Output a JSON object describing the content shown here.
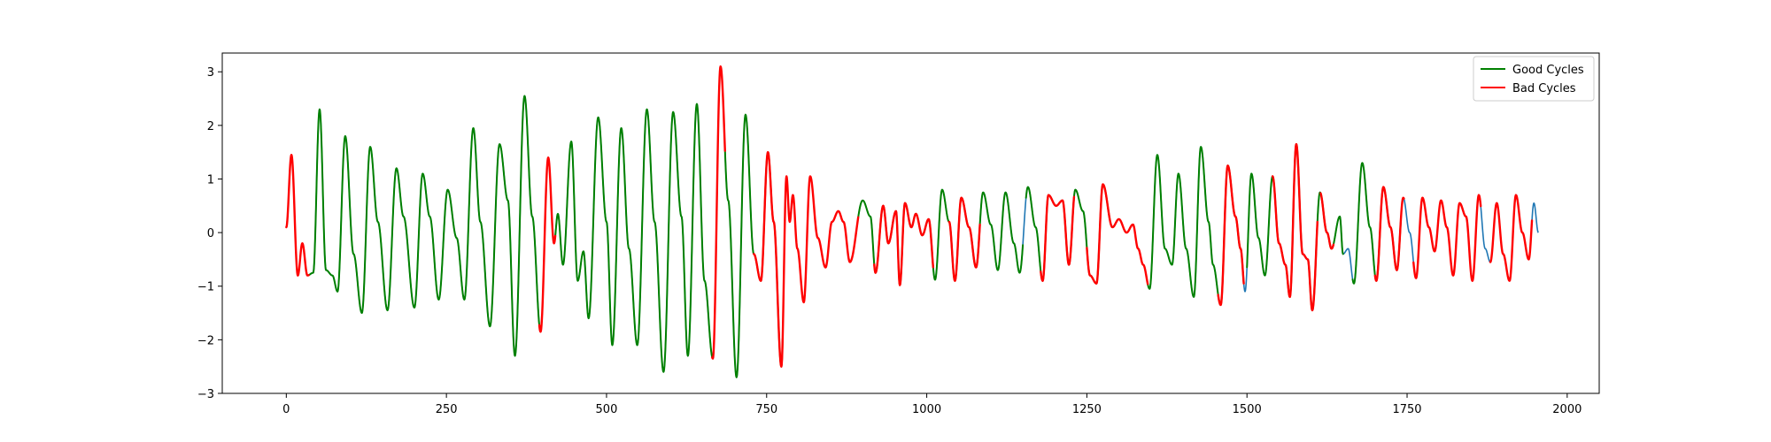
{
  "chart_data": {
    "type": "line",
    "title": "",
    "xlabel": "",
    "ylabel": "",
    "xlim": [
      -100,
      2050
    ],
    "ylim": [
      -3.0,
      3.35
    ],
    "xticks": [
      0,
      250,
      500,
      750,
      1000,
      1250,
      1500,
      1750,
      2000
    ],
    "xtick_labels": [
      "0",
      "250",
      "500",
      "750",
      "1000",
      "1250",
      "1500",
      "1750",
      "2000"
    ],
    "yticks": [
      -3,
      -2,
      -1,
      0,
      1,
      2,
      3
    ],
    "ytick_labels": [
      "−3",
      "−2",
      "−1",
      "0",
      "1",
      "2",
      "3"
    ],
    "grid": false,
    "legend_position": "top-right",
    "colors": {
      "base": "#1f77b4",
      "good": "#008000",
      "bad": "#ff0000"
    },
    "signal_x_range": [
      0,
      1955
    ],
    "signal_extremes": [
      {
        "x": 0,
        "y": 0.1
      },
      {
        "x": 8,
        "y": 1.45
      },
      {
        "x": 18,
        "y": -0.8
      },
      {
        "x": 25,
        "y": -0.2
      },
      {
        "x": 33,
        "y": -0.8
      },
      {
        "x": 42,
        "y": -0.75
      },
      {
        "x": 52,
        "y": 2.3
      },
      {
        "x": 62,
        "y": -0.7
      },
      {
        "x": 72,
        "y": -0.8
      },
      {
        "x": 80,
        "y": -1.1
      },
      {
        "x": 92,
        "y": 1.8
      },
      {
        "x": 105,
        "y": -0.4
      },
      {
        "x": 118,
        "y": -1.5
      },
      {
        "x": 131,
        "y": 1.6
      },
      {
        "x": 143,
        "y": 0.2
      },
      {
        "x": 158,
        "y": -1.45
      },
      {
        "x": 172,
        "y": 1.2
      },
      {
        "x": 183,
        "y": 0.3
      },
      {
        "x": 200,
        "y": -1.4
      },
      {
        "x": 213,
        "y": 1.1
      },
      {
        "x": 224,
        "y": 0.3
      },
      {
        "x": 238,
        "y": -1.25
      },
      {
        "x": 252,
        "y": 0.8
      },
      {
        "x": 266,
        "y": -0.1
      },
      {
        "x": 278,
        "y": -1.25
      },
      {
        "x": 292,
        "y": 1.95
      },
      {
        "x": 303,
        "y": 0.2
      },
      {
        "x": 318,
        "y": -1.75
      },
      {
        "x": 333,
        "y": 1.65
      },
      {
        "x": 346,
        "y": 0.6
      },
      {
        "x": 357,
        "y": -2.3
      },
      {
        "x": 372,
        "y": 2.55
      },
      {
        "x": 384,
        "y": 0.3
      },
      {
        "x": 397,
        "y": -1.85
      },
      {
        "x": 409,
        "y": 1.4
      },
      {
        "x": 418,
        "y": -0.2
      },
      {
        "x": 424,
        "y": 0.35
      },
      {
        "x": 432,
        "y": -0.6
      },
      {
        "x": 445,
        "y": 1.7
      },
      {
        "x": 455,
        "y": -0.9
      },
      {
        "x": 464,
        "y": -0.35
      },
      {
        "x": 472,
        "y": -1.6
      },
      {
        "x": 487,
        "y": 2.15
      },
      {
        "x": 500,
        "y": 0.2
      },
      {
        "x": 509,
        "y": -2.1
      },
      {
        "x": 523,
        "y": 1.95
      },
      {
        "x": 535,
        "y": -0.3
      },
      {
        "x": 548,
        "y": -2.1
      },
      {
        "x": 563,
        "y": 2.3
      },
      {
        "x": 575,
        "y": 0.2
      },
      {
        "x": 589,
        "y": -2.6
      },
      {
        "x": 604,
        "y": 2.25
      },
      {
        "x": 617,
        "y": 0.3
      },
      {
        "x": 627,
        "y": -2.3
      },
      {
        "x": 641,
        "y": 2.4
      },
      {
        "x": 653,
        "y": -0.9
      },
      {
        "x": 666,
        "y": -2.35
      },
      {
        "x": 678,
        "y": 3.1
      },
      {
        "x": 690,
        "y": 0.6
      },
      {
        "x": 703,
        "y": -2.7
      },
      {
        "x": 717,
        "y": 2.2
      },
      {
        "x": 730,
        "y": -0.4
      },
      {
        "x": 741,
        "y": -0.9
      },
      {
        "x": 752,
        "y": 1.5
      },
      {
        "x": 761,
        "y": 0.2
      },
      {
        "x": 773,
        "y": -2.5
      },
      {
        "x": 781,
        "y": 1.05
      },
      {
        "x": 786,
        "y": 0.2
      },
      {
        "x": 791,
        "y": 0.7
      },
      {
        "x": 798,
        "y": -0.3
      },
      {
        "x": 808,
        "y": -1.3
      },
      {
        "x": 818,
        "y": 1.05
      },
      {
        "x": 830,
        "y": -0.1
      },
      {
        "x": 842,
        "y": -0.65
      },
      {
        "x": 852,
        "y": 0.2
      },
      {
        "x": 862,
        "y": 0.4
      },
      {
        "x": 870,
        "y": 0.2
      },
      {
        "x": 880,
        "y": -0.55
      },
      {
        "x": 900,
        "y": 0.6
      },
      {
        "x": 912,
        "y": 0.3
      },
      {
        "x": 920,
        "y": -0.75
      },
      {
        "x": 932,
        "y": 0.5
      },
      {
        "x": 940,
        "y": -0.2
      },
      {
        "x": 952,
        "y": 0.4
      },
      {
        "x": 958,
        "y": -0.98
      },
      {
        "x": 966,
        "y": 0.55
      },
      {
        "x": 976,
        "y": 0.1
      },
      {
        "x": 983,
        "y": 0.35
      },
      {
        "x": 993,
        "y": -0.05
      },
      {
        "x": 1003,
        "y": 0.25
      },
      {
        "x": 1013,
        "y": -0.88
      },
      {
        "x": 1024,
        "y": 0.8
      },
      {
        "x": 1035,
        "y": 0.2
      },
      {
        "x": 1044,
        "y": -0.9
      },
      {
        "x": 1054,
        "y": 0.65
      },
      {
        "x": 1066,
        "y": 0.1
      },
      {
        "x": 1077,
        "y": -0.65
      },
      {
        "x": 1088,
        "y": 0.75
      },
      {
        "x": 1100,
        "y": 0.15
      },
      {
        "x": 1111,
        "y": -0.7
      },
      {
        "x": 1123,
        "y": 0.75
      },
      {
        "x": 1136,
        "y": -0.2
      },
      {
        "x": 1145,
        "y": -0.75
      },
      {
        "x": 1158,
        "y": 0.85
      },
      {
        "x": 1170,
        "y": 0.1
      },
      {
        "x": 1181,
        "y": -0.9
      },
      {
        "x": 1190,
        "y": 0.7
      },
      {
        "x": 1202,
        "y": 0.5
      },
      {
        "x": 1212,
        "y": 0.6
      },
      {
        "x": 1222,
        "y": -0.6
      },
      {
        "x": 1232,
        "y": 0.8
      },
      {
        "x": 1244,
        "y": 0.4
      },
      {
        "x": 1255,
        "y": -0.8
      },
      {
        "x": 1265,
        "y": -0.95
      },
      {
        "x": 1275,
        "y": 0.9
      },
      {
        "x": 1290,
        "y": 0.1
      },
      {
        "x": 1300,
        "y": 0.25
      },
      {
        "x": 1312,
        "y": 0.0
      },
      {
        "x": 1322,
        "y": 0.15
      },
      {
        "x": 1330,
        "y": -0.3
      },
      {
        "x": 1338,
        "y": -0.6
      },
      {
        "x": 1348,
        "y": -1.05
      },
      {
        "x": 1360,
        "y": 1.45
      },
      {
        "x": 1372,
        "y": -0.3
      },
      {
        "x": 1383,
        "y": -0.6
      },
      {
        "x": 1393,
        "y": 1.1
      },
      {
        "x": 1405,
        "y": -0.3
      },
      {
        "x": 1417,
        "y": -1.2
      },
      {
        "x": 1428,
        "y": 1.6
      },
      {
        "x": 1440,
        "y": 0.2
      },
      {
        "x": 1447,
        "y": -0.6
      },
      {
        "x": 1459,
        "y": -1.35
      },
      {
        "x": 1470,
        "y": 1.25
      },
      {
        "x": 1482,
        "y": 0.3
      },
      {
        "x": 1490,
        "y": -0.3
      },
      {
        "x": 1497,
        "y": -1.1
      },
      {
        "x": 1507,
        "y": 1.1
      },
      {
        "x": 1518,
        "y": -0.1
      },
      {
        "x": 1528,
        "y": -0.8
      },
      {
        "x": 1540,
        "y": 1.05
      },
      {
        "x": 1550,
        "y": -0.2
      },
      {
        "x": 1560,
        "y": -0.6
      },
      {
        "x": 1567,
        "y": -1.2
      },
      {
        "x": 1577,
        "y": 1.65
      },
      {
        "x": 1587,
        "y": -0.4
      },
      {
        "x": 1595,
        "y": -0.5
      },
      {
        "x": 1602,
        "y": -1.45
      },
      {
        "x": 1614,
        "y": 0.75
      },
      {
        "x": 1625,
        "y": 0.0
      },
      {
        "x": 1632,
        "y": -0.3
      },
      {
        "x": 1645,
        "y": 0.3
      },
      {
        "x": 1650,
        "y": -0.4
      },
      {
        "x": 1658,
        "y": -0.3
      },
      {
        "x": 1667,
        "y": -0.95
      },
      {
        "x": 1680,
        "y": 1.3
      },
      {
        "x": 1692,
        "y": 0.1
      },
      {
        "x": 1702,
        "y": -0.9
      },
      {
        "x": 1713,
        "y": 0.85
      },
      {
        "x": 1724,
        "y": 0.1
      },
      {
        "x": 1734,
        "y": -0.7
      },
      {
        "x": 1744,
        "y": 0.65
      },
      {
        "x": 1754,
        "y": 0.0
      },
      {
        "x": 1764,
        "y": -0.85
      },
      {
        "x": 1774,
        "y": 0.65
      },
      {
        "x": 1784,
        "y": 0.1
      },
      {
        "x": 1793,
        "y": -0.35
      },
      {
        "x": 1803,
        "y": 0.6
      },
      {
        "x": 1812,
        "y": 0.1
      },
      {
        "x": 1822,
        "y": -0.8
      },
      {
        "x": 1832,
        "y": 0.55
      },
      {
        "x": 1842,
        "y": 0.3
      },
      {
        "x": 1852,
        "y": -0.9
      },
      {
        "x": 1862,
        "y": 0.7
      },
      {
        "x": 1872,
        "y": -0.3
      },
      {
        "x": 1880,
        "y": -0.55
      },
      {
        "x": 1890,
        "y": 0.55
      },
      {
        "x": 1900,
        "y": -0.4
      },
      {
        "x": 1910,
        "y": -0.9
      },
      {
        "x": 1920,
        "y": 0.7
      },
      {
        "x": 1930,
        "y": 0.0
      },
      {
        "x": 1940,
        "y": -0.5
      },
      {
        "x": 1948,
        "y": 0.55
      },
      {
        "x": 1955,
        "y": 0.0
      }
    ],
    "series": [
      {
        "name": "Good Cycles",
        "color": "#008000",
        "segments": [
          [
            35,
            395
          ],
          [
            420,
            665
          ],
          [
            685,
            775
          ],
          [
            893,
            1150
          ],
          [
            1155,
            1300
          ],
          [
            1345,
            1495
          ],
          [
            1500,
            1650
          ],
          [
            1665,
            1740
          ]
        ]
      },
      {
        "name": "Bad Cycles",
        "color": "#ff0000",
        "segments": [
          [
            0,
            35
          ],
          [
            395,
            420
          ],
          [
            665,
            685
          ],
          [
            730,
            893
          ],
          [
            918,
            1010
          ],
          [
            1035,
            1083
          ],
          [
            1178,
            1230
          ],
          [
            1250,
            1345
          ],
          [
            1455,
            1495
          ],
          [
            1540,
            1610
          ],
          [
            1615,
            1635
          ],
          [
            1700,
            1745
          ],
          [
            1760,
            1865
          ],
          [
            1880,
            1945
          ]
        ]
      }
    ]
  }
}
